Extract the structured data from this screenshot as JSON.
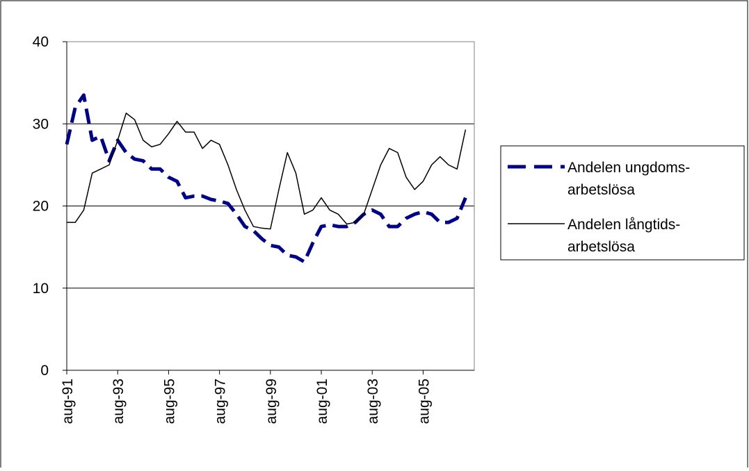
{
  "chart_data": {
    "type": "line",
    "categories": [
      "aug-91",
      null,
      null,
      null,
      null,
      null,
      "aug-93",
      null,
      null,
      null,
      null,
      null,
      "aug-95",
      null,
      null,
      null,
      null,
      null,
      "aug-97",
      null,
      null,
      null,
      null,
      null,
      "aug-99",
      null,
      null,
      null,
      null,
      null,
      "aug-01",
      null,
      null,
      null,
      null,
      null,
      "aug-03",
      null,
      null,
      null,
      null,
      null,
      "aug-05",
      null,
      null,
      null,
      null,
      null
    ],
    "series": [
      {
        "name": "Andelen ungdoms-arbetslösa",
        "color": "#000080",
        "dash": true,
        "values": [
          27.5,
          32,
          33.5,
          28,
          28.5,
          25.5,
          28,
          26.5,
          25.7,
          25.5,
          24.5,
          24.5,
          23.5,
          23,
          21,
          21.2,
          21.2,
          20.8,
          20.6,
          20.3,
          19,
          17.5,
          17,
          16,
          15.2,
          15,
          14,
          13.8,
          13.2,
          15.5,
          17.5,
          17.7,
          17.5,
          17.5,
          18,
          19,
          19.5,
          19,
          17.5,
          17.5,
          18.5,
          19,
          19.3,
          19,
          18,
          18,
          18.5,
          21
        ]
      },
      {
        "name": "Andelen långtids-arbetslösa",
        "color": "#000000",
        "dash": false,
        "values": [
          18,
          18,
          19.5,
          24,
          24.5,
          25,
          28,
          31.3,
          30.5,
          28,
          27.2,
          27.5,
          28.8,
          30.3,
          29,
          29,
          27,
          28,
          27.5,
          25,
          22,
          19.5,
          17.5,
          17.3,
          17.2,
          22,
          26.5,
          24,
          19,
          19.5,
          21,
          19.5,
          19,
          17.8,
          18,
          19,
          22,
          25,
          27,
          26.5,
          23.5,
          22,
          23,
          25,
          26,
          25,
          24.5,
          29.3
        ]
      }
    ],
    "ylim": [
      0,
      40
    ],
    "yticks": [
      0,
      10,
      20,
      30,
      40
    ],
    "grid": true,
    "legend": "right"
  }
}
